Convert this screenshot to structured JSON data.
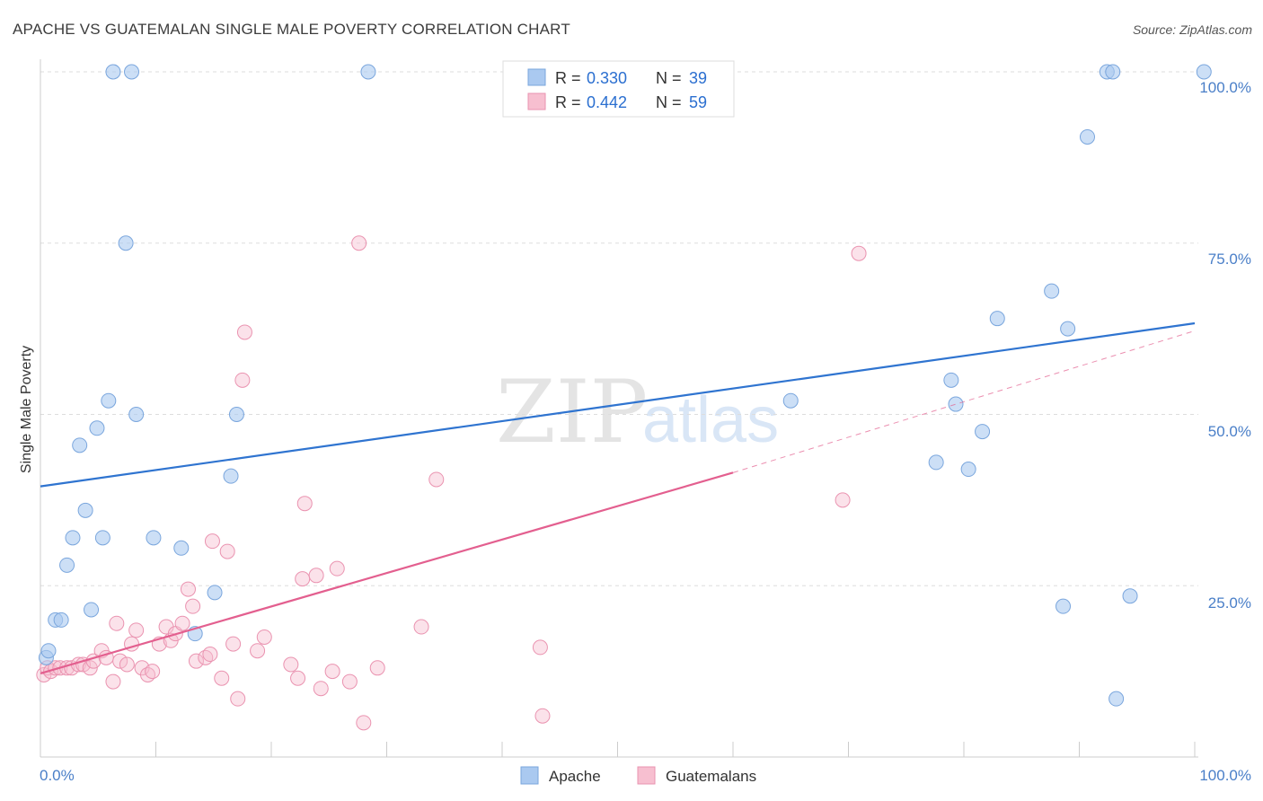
{
  "title": "APACHE VS GUATEMALAN SINGLE MALE POVERTY CORRELATION CHART",
  "source": "Source: ZipAtlas.com",
  "watermark": {
    "zip": "ZIP",
    "atlas": "atlas"
  },
  "legend": {
    "apache": {
      "r_label": "R =",
      "r_value": "0.330",
      "n_label": "N =",
      "n_value": "39"
    },
    "guatemalans": {
      "r_label": "R =",
      "r_value": "0.442",
      "n_label": "N =",
      "n_value": "59"
    }
  },
  "bottom_legend": {
    "apache": "Apache",
    "guatemalans": "Guatemalans"
  },
  "colors": {
    "apache_fill": "#aac9f0",
    "apache_stroke": "#7aa6dd",
    "apache_line": "#2f74d0",
    "guatemalans_fill": "#f7bfd0",
    "guatemalans_stroke": "#ea93b0",
    "guatemalans_line": "#e35f8f",
    "tick_label": "#4a7fc8",
    "grid": "#dddddd"
  },
  "chart_data": {
    "type": "scatter",
    "title": "APACHE VS GUATEMALAN SINGLE MALE POVERTY CORRELATION CHART",
    "xlabel": "",
    "ylabel": "Single Male Poverty",
    "xlim": [
      0,
      100
    ],
    "ylim": [
      0,
      100
    ],
    "x_tick_labels": [
      "0.0%",
      "100.0%"
    ],
    "y_tick_labels": [
      "25.0%",
      "50.0%",
      "75.0%",
      "100.0%"
    ],
    "y_ticks": [
      25,
      50,
      75,
      100
    ],
    "grid": true,
    "series": [
      {
        "name": "Apache",
        "points": [
          [
            0.5,
            14.5
          ],
          [
            0.7,
            15.5
          ],
          [
            1.3,
            20
          ],
          [
            1.8,
            20
          ],
          [
            2.3,
            28
          ],
          [
            2.8,
            32
          ],
          [
            3.4,
            45.5
          ],
          [
            3.9,
            36
          ],
          [
            4.4,
            21.5
          ],
          [
            4.9,
            48
          ],
          [
            5.4,
            32
          ],
          [
            5.9,
            52
          ],
          [
            6.3,
            100
          ],
          [
            7.4,
            75
          ],
          [
            7.9,
            100
          ],
          [
            8.3,
            50
          ],
          [
            9.8,
            32
          ],
          [
            12.2,
            30.5
          ],
          [
            13.4,
            18
          ],
          [
            15.1,
            24
          ],
          [
            16.5,
            41
          ],
          [
            17.0,
            50
          ],
          [
            28.4,
            100
          ],
          [
            65.0,
            52
          ],
          [
            77.6,
            43
          ],
          [
            78.9,
            55
          ],
          [
            79.3,
            51.5
          ],
          [
            80.4,
            42
          ],
          [
            81.6,
            47.5
          ],
          [
            82.9,
            64
          ],
          [
            87.6,
            68
          ],
          [
            88.6,
            22
          ],
          [
            89.0,
            62.5
          ],
          [
            90.7,
            90.5
          ],
          [
            92.4,
            100
          ],
          [
            92.9,
            100
          ],
          [
            93.2,
            8.5
          ],
          [
            94.4,
            23.5
          ],
          [
            100.8,
            100
          ]
        ],
        "trend": {
          "x": [
            0,
            100
          ],
          "y": [
            39.5,
            63.3
          ]
        }
      },
      {
        "name": "Guatemalans",
        "points": [
          [
            0.3,
            12
          ],
          [
            0.6,
            13
          ],
          [
            0.9,
            12.5
          ],
          [
            1.3,
            13
          ],
          [
            1.7,
            13
          ],
          [
            2.3,
            13
          ],
          [
            2.7,
            13
          ],
          [
            3.3,
            13.5
          ],
          [
            3.7,
            13.5
          ],
          [
            4.3,
            13
          ],
          [
            4.6,
            14
          ],
          [
            5.3,
            15.5
          ],
          [
            5.7,
            14.5
          ],
          [
            6.3,
            11
          ],
          [
            6.6,
            19.5
          ],
          [
            6.9,
            14
          ],
          [
            7.5,
            13.5
          ],
          [
            7.9,
            16.5
          ],
          [
            8.3,
            18.5
          ],
          [
            8.8,
            13
          ],
          [
            9.3,
            12
          ],
          [
            9.7,
            12.5
          ],
          [
            10.3,
            16.5
          ],
          [
            10.9,
            19
          ],
          [
            11.3,
            17
          ],
          [
            11.7,
            18
          ],
          [
            12.3,
            19.5
          ],
          [
            12.8,
            24.5
          ],
          [
            13.2,
            22
          ],
          [
            13.5,
            14
          ],
          [
            14.3,
            14.5
          ],
          [
            14.7,
            15
          ],
          [
            14.9,
            31.5
          ],
          [
            15.7,
            11.5
          ],
          [
            16.2,
            30
          ],
          [
            16.7,
            16.5
          ],
          [
            17.1,
            8.5
          ],
          [
            17.5,
            55
          ],
          [
            17.7,
            62
          ],
          [
            18.8,
            15.5
          ],
          [
            19.4,
            17.5
          ],
          [
            21.7,
            13.5
          ],
          [
            22.3,
            11.5
          ],
          [
            22.7,
            26
          ],
          [
            22.9,
            37
          ],
          [
            23.9,
            26.5
          ],
          [
            24.3,
            10
          ],
          [
            25.3,
            12.5
          ],
          [
            25.7,
            27.5
          ],
          [
            26.8,
            11
          ],
          [
            27.6,
            75
          ],
          [
            28.0,
            5
          ],
          [
            29.2,
            13
          ],
          [
            33.0,
            19
          ],
          [
            34.3,
            40.5
          ],
          [
            43.3,
            16
          ],
          [
            43.5,
            6
          ],
          [
            69.5,
            37.5
          ],
          [
            70.9,
            73.5
          ]
        ],
        "trend": {
          "x": [
            0,
            60
          ],
          "y": [
            12.2,
            41.5
          ]
        },
        "trend_dashed": {
          "x": [
            60,
            100
          ],
          "y": [
            41.5,
            62.2
          ]
        }
      }
    ]
  }
}
